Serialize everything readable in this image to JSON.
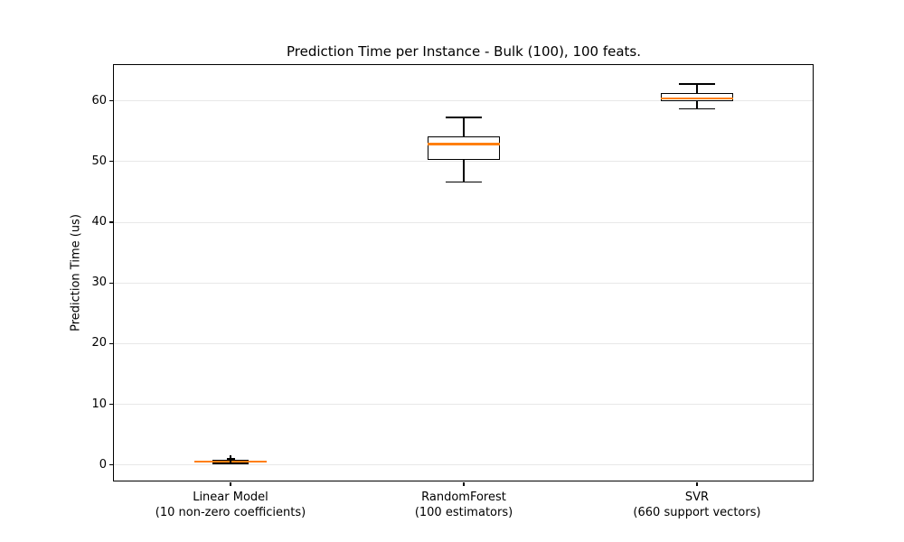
{
  "chart_data": {
    "type": "boxplot",
    "title": "Prediction Time per Instance - Bulk (100), 100 feats.",
    "ylabel": "Prediction Time (us)",
    "xlabel": "",
    "ylim": [
      -2.7,
      65.9
    ],
    "yticks": [
      0,
      10,
      20,
      30,
      40,
      50,
      60
    ],
    "grid": "horizontal",
    "legend": "none",
    "colors": {
      "median": "#ff7f0e",
      "box_edge": "#000000",
      "box_fill": "#ffffff",
      "whisker": "#000000",
      "flier": "#000000",
      "gridline": "#e8e8e8",
      "background": "#ffffff"
    },
    "boxes": [
      {
        "label_line1": "Linear Model",
        "label_line2": "(10 non-zero coefficients)",
        "whisker_low": 0.3,
        "q1": 0.4,
        "median": 0.55,
        "q3": 0.65,
        "whisker_high": 0.8,
        "fliers": [
          1.0
        ]
      },
      {
        "label_line1": "RandomForest",
        "label_line2": "(100 estimators)",
        "whisker_low": 46.6,
        "q1": 50.3,
        "median": 52.9,
        "q3": 54.2,
        "whisker_high": 57.3,
        "fliers": []
      },
      {
        "label_line1": "SVR",
        "label_line2": "(660 support vectors)",
        "whisker_low": 58.7,
        "q1": 59.9,
        "median": 60.4,
        "q3": 61.3,
        "whisker_high": 62.8,
        "fliers": []
      }
    ]
  }
}
